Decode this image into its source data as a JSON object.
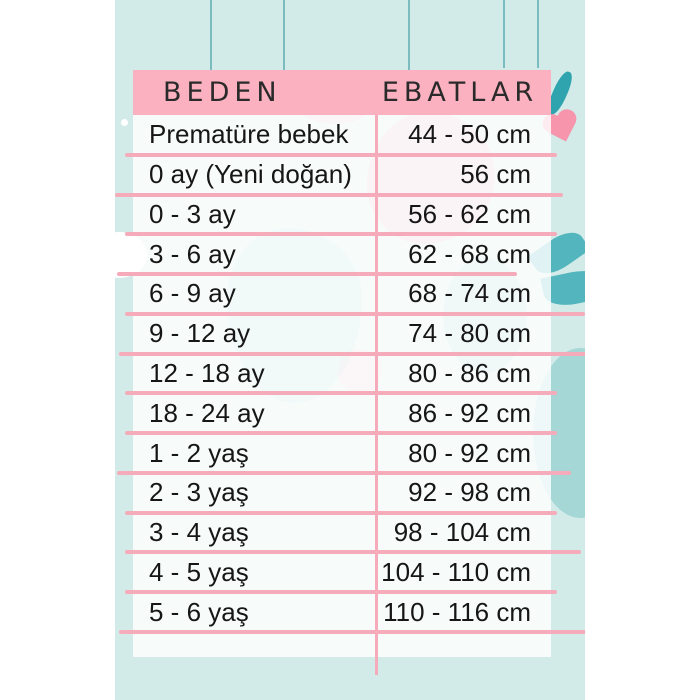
{
  "chart_data": {
    "type": "table",
    "columns": [
      "BEDEN",
      "EBATLAR"
    ],
    "rows": [
      [
        "Prematüre bebek",
        "44 - 50 cm"
      ],
      [
        "0 ay (Yeni doğan)",
        "56 cm"
      ],
      [
        "0 - 3 ay",
        "56 - 62 cm"
      ],
      [
        "3 - 6 ay",
        "62 - 68 cm"
      ],
      [
        "6 - 9 ay",
        "68 - 74 cm"
      ],
      [
        "9 - 12 ay",
        "74 - 80 cm"
      ],
      [
        "12 - 18 ay",
        "80 - 86 cm"
      ],
      [
        "18 - 24 ay",
        "86 - 92 cm"
      ],
      [
        "1 - 2 yaş",
        "80 - 92 cm"
      ],
      [
        "2 - 3 yaş",
        "92 - 98 cm"
      ],
      [
        "3 - 4 yaş",
        "98 - 104 cm"
      ],
      [
        "4 - 5 yaş",
        "104 - 110 cm"
      ],
      [
        "5 - 6 yaş",
        "110 - 116 cm"
      ]
    ],
    "title": ""
  },
  "colors": {
    "page_background": "#ffffff",
    "photo_teal": "#d2ebe9",
    "header_pink": "#fbb1c0",
    "line_pink": "#f6abba",
    "string_teal": "#7bbcc1",
    "ornament_pink": "#f795ac",
    "leaf_teal": "#45b0b9",
    "text": "#161616"
  },
  "decorations": [
    "hanging-string",
    "heart-ornament",
    "leaf-sprig",
    "cloud",
    "sparkle-dot",
    "pastel-blobs"
  ]
}
